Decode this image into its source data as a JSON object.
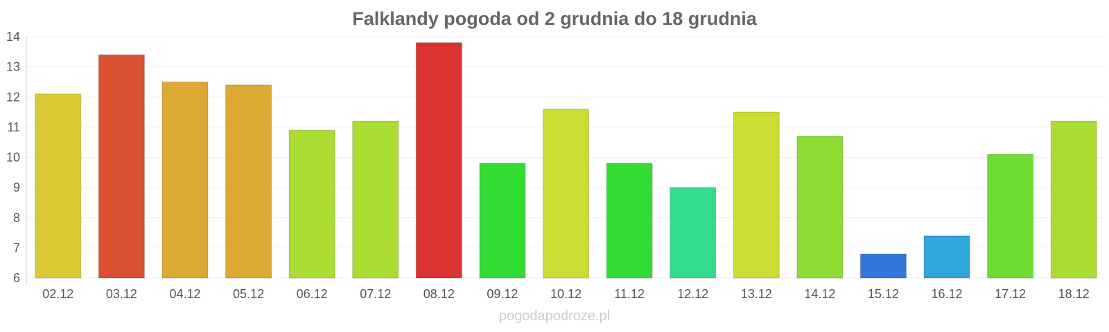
{
  "chart_data": {
    "type": "bar",
    "title": "Falklandy pogoda od 2 grudnia do 18 grudnia",
    "xlabel": "",
    "ylabel": "",
    "ylim": [
      6,
      14
    ],
    "yticks": [
      6,
      7,
      8,
      9,
      10,
      11,
      12,
      13,
      14
    ],
    "grid": true,
    "categories": [
      "02.12",
      "03.12",
      "04.12",
      "05.12",
      "06.12",
      "07.12",
      "08.12",
      "09.12",
      "10.12",
      "11.12",
      "12.12",
      "13.12",
      "14.12",
      "15.12",
      "16.12",
      "17.12",
      "18.12"
    ],
    "values": [
      12.1,
      13.4,
      12.5,
      12.4,
      10.9,
      11.2,
      13.8,
      9.8,
      11.6,
      9.8,
      9.0,
      11.5,
      10.7,
      6.8,
      7.4,
      10.1,
      11.2
    ],
    "colors": [
      "#dcc832",
      "#dc5032",
      "#dcaa32",
      "#dcaa32",
      "#aadc32",
      "#aadc32",
      "#dc3232",
      "#32dc32",
      "#cddc32",
      "#32dc32",
      "#32dc8c",
      "#cddc32",
      "#8cdc32",
      "#3278dc",
      "#32a5dc",
      "#6edc32",
      "#aadc32"
    ]
  },
  "watermark": "pogodapodroze.pl"
}
